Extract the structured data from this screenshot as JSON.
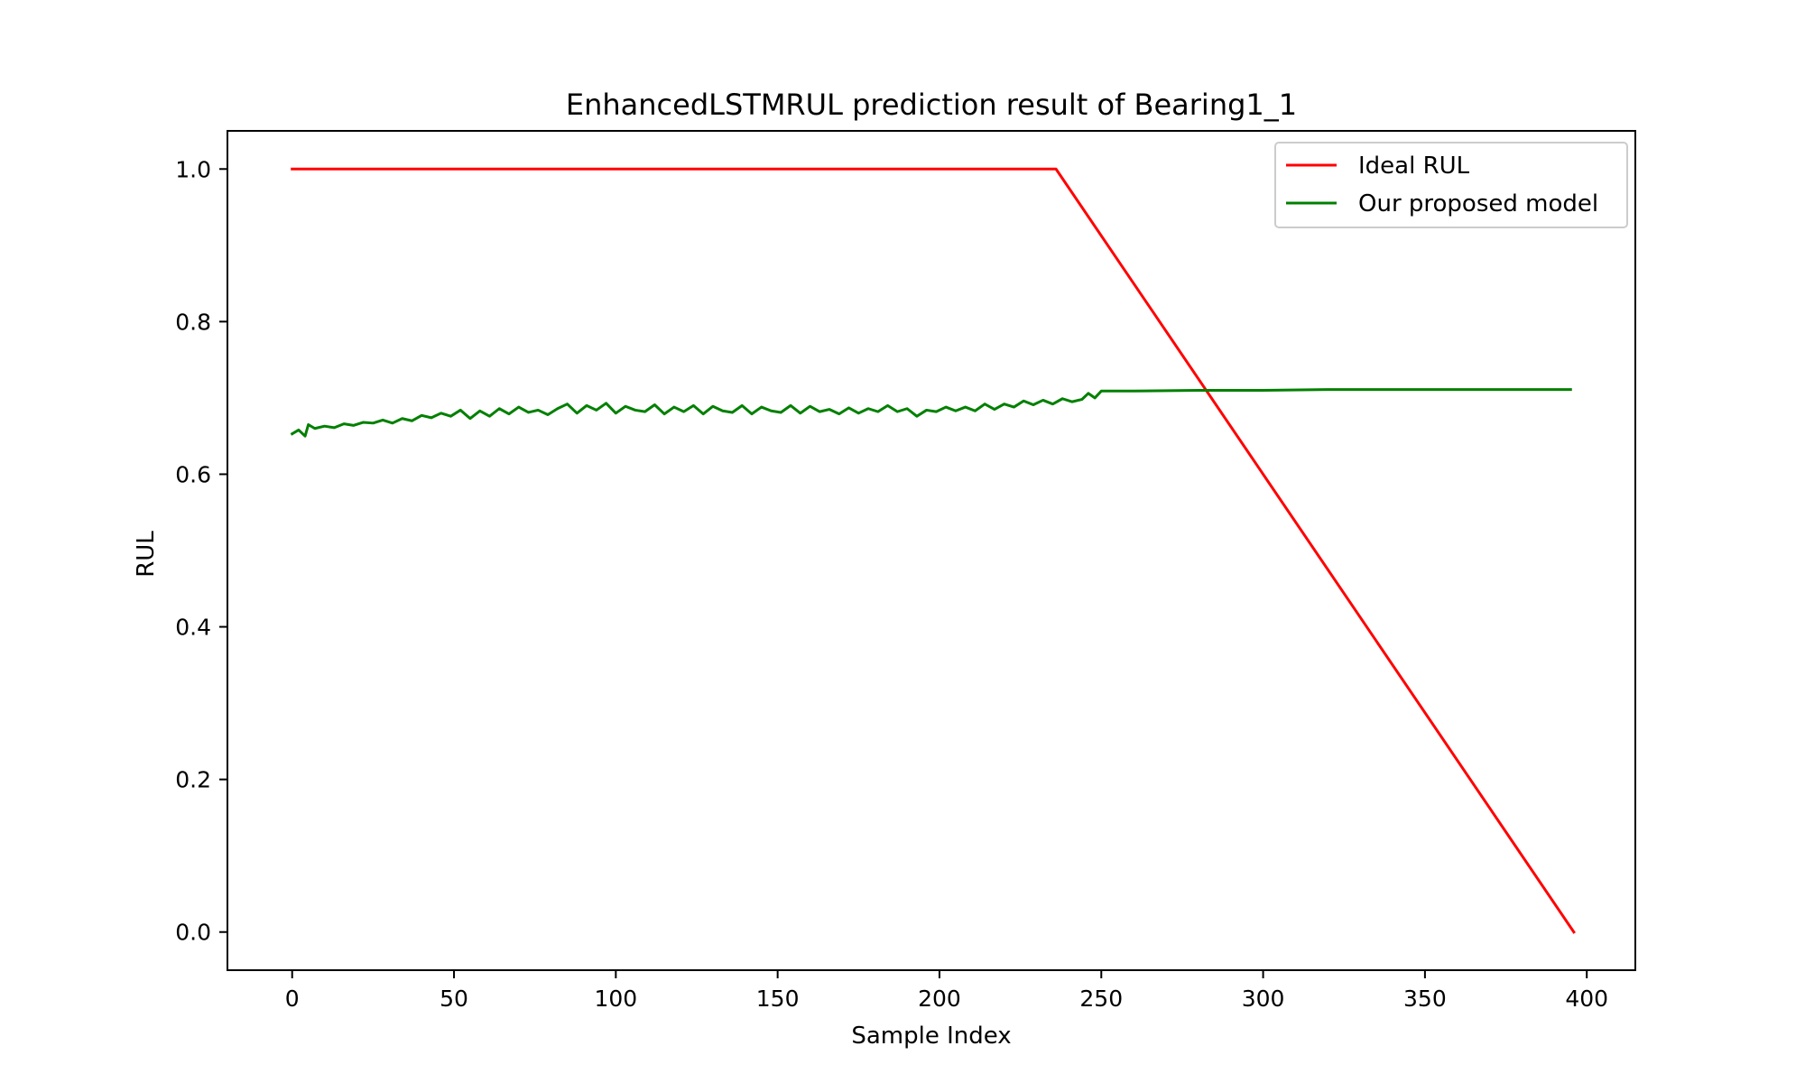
{
  "chart_data": {
    "type": "line",
    "title": "EnhancedLSTMRUL prediction result of Bearing1_1",
    "xlabel": "Sample Index",
    "ylabel": "RUL",
    "xlim": [
      -20,
      415
    ],
    "ylim": [
      -0.05,
      1.05
    ],
    "xticks": [
      0,
      50,
      100,
      150,
      200,
      250,
      300,
      350,
      400
    ],
    "yticks": [
      0.0,
      0.2,
      0.4,
      0.6,
      0.8,
      1.0
    ],
    "xtick_labels": [
      "0",
      "50",
      "100",
      "150",
      "200",
      "250",
      "300",
      "350",
      "400"
    ],
    "ytick_labels": [
      "0.0",
      "0.2",
      "0.4",
      "0.6",
      "0.8",
      "1.0"
    ],
    "grid": false,
    "legend_position": "top-right",
    "series": [
      {
        "name": "Ideal RUL",
        "color": "#ff0000",
        "x": [
          0,
          236,
          396
        ],
        "y": [
          1.0,
          1.0,
          0.0
        ]
      },
      {
        "name": "Our proposed model",
        "color": "#008000",
        "x": [
          0,
          2,
          4,
          5,
          7,
          10,
          13,
          16,
          19,
          22,
          25,
          28,
          31,
          34,
          37,
          40,
          43,
          46,
          49,
          52,
          55,
          58,
          61,
          64,
          67,
          70,
          73,
          76,
          79,
          82,
          85,
          88,
          91,
          94,
          97,
          100,
          103,
          106,
          109,
          112,
          115,
          118,
          121,
          124,
          127,
          130,
          133,
          136,
          139,
          142,
          145,
          148,
          151,
          154,
          157,
          160,
          163,
          166,
          169,
          172,
          175,
          178,
          181,
          184,
          187,
          190,
          193,
          196,
          199,
          202,
          205,
          208,
          211,
          214,
          217,
          220,
          223,
          226,
          229,
          232,
          235,
          238,
          241,
          244,
          246,
          248,
          250,
          260,
          280,
          300,
          320,
          340,
          360,
          380,
          395
        ],
        "y": [
          0.653,
          0.658,
          0.65,
          0.665,
          0.66,
          0.663,
          0.661,
          0.666,
          0.664,
          0.668,
          0.667,
          0.671,
          0.667,
          0.673,
          0.67,
          0.677,
          0.674,
          0.68,
          0.676,
          0.684,
          0.673,
          0.683,
          0.676,
          0.686,
          0.679,
          0.688,
          0.681,
          0.684,
          0.678,
          0.686,
          0.692,
          0.68,
          0.69,
          0.684,
          0.693,
          0.68,
          0.689,
          0.684,
          0.682,
          0.691,
          0.679,
          0.688,
          0.682,
          0.69,
          0.679,
          0.689,
          0.683,
          0.681,
          0.69,
          0.679,
          0.688,
          0.683,
          0.681,
          0.69,
          0.68,
          0.689,
          0.682,
          0.685,
          0.679,
          0.687,
          0.68,
          0.686,
          0.682,
          0.69,
          0.682,
          0.686,
          0.676,
          0.684,
          0.682,
          0.688,
          0.683,
          0.688,
          0.683,
          0.692,
          0.685,
          0.692,
          0.688,
          0.696,
          0.691,
          0.697,
          0.692,
          0.699,
          0.695,
          0.698,
          0.706,
          0.7,
          0.709,
          0.709,
          0.71,
          0.71,
          0.711,
          0.711,
          0.711,
          0.711,
          0.711
        ]
      }
    ]
  }
}
